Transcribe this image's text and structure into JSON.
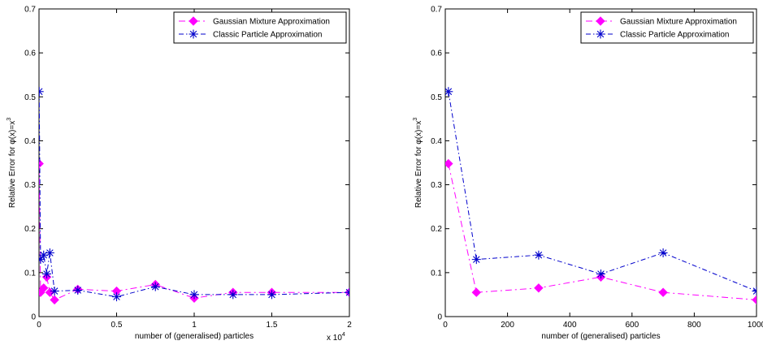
{
  "chart_data": [
    {
      "type": "line",
      "xlabel": "number of (generalised) particles",
      "ylabel": "Relative Error for φ(x)=x",
      "ylabel_exponent": "3",
      "x_exponent_label": "x 10",
      "x_exponent_power": "4",
      "xlim": [
        0,
        20000
      ],
      "ylim": [
        0,
        0.7
      ],
      "xticks": [
        0,
        5000,
        10000,
        15000,
        20000
      ],
      "xtick_labels": [
        "0",
        "0.5",
        "1",
        "1.5",
        "2"
      ],
      "yticks": [
        0,
        0.1,
        0.2,
        0.3,
        0.4,
        0.5,
        0.6,
        0.7
      ],
      "ytick_labels": [
        "0",
        "0.1",
        "0.2",
        "0.3",
        "0.4",
        "0.5",
        "0.6",
        "0.7"
      ],
      "legend_position": "top-right",
      "grid": false,
      "series": [
        {
          "name": "Gaussian Mixture Approximation",
          "color": "#ff00ff",
          "marker": "diamond",
          "dash": "8,4,2,4",
          "x": [
            10,
            100,
            300,
            500,
            700,
            1000,
            2500,
            5000,
            7500,
            10000,
            12500,
            15000,
            20000
          ],
          "y": [
            0.348,
            0.055,
            0.065,
            0.09,
            0.055,
            0.038,
            0.062,
            0.058,
            0.073,
            0.042,
            0.055,
            0.055,
            0.055
          ]
        },
        {
          "name": "Classic Particle Approximation",
          "color": "#0000cc",
          "marker": "asterisk",
          "dash": "6,3,1.5,3",
          "x": [
            10,
            100,
            300,
            500,
            700,
            1000,
            2500,
            5000,
            7500,
            10000,
            12500,
            15000,
            20000
          ],
          "y": [
            0.512,
            0.13,
            0.14,
            0.097,
            0.145,
            0.058,
            0.06,
            0.045,
            0.068,
            0.05,
            0.05,
            0.05,
            0.055
          ]
        }
      ]
    },
    {
      "type": "line",
      "xlabel": "number of (generalised) particles",
      "ylabel": "Relative Error for φ(x)=x",
      "ylabel_exponent": "3",
      "xlim": [
        0,
        1000
      ],
      "ylim": [
        0,
        0.7
      ],
      "xticks": [
        0,
        200,
        400,
        600,
        800,
        1000
      ],
      "xtick_labels": [
        "0",
        "200",
        "400",
        "600",
        "800",
        "1000"
      ],
      "yticks": [
        0,
        0.1,
        0.2,
        0.3,
        0.4,
        0.5,
        0.6,
        0.7
      ],
      "ytick_labels": [
        "0",
        "0.1",
        "0.2",
        "0.3",
        "0.4",
        "0.5",
        "0.6",
        "0.7"
      ],
      "legend_position": "top-right",
      "grid": false,
      "series": [
        {
          "name": "Gaussian Mixture Approximation",
          "color": "#ff00ff",
          "marker": "diamond",
          "dash": "8,4,2,4",
          "x": [
            10,
            100,
            300,
            500,
            700,
            1000
          ],
          "y": [
            0.348,
            0.055,
            0.065,
            0.09,
            0.055,
            0.038
          ]
        },
        {
          "name": "Classic Particle Approximation",
          "color": "#0000cc",
          "marker": "asterisk",
          "dash": "6,3,1.5,3",
          "x": [
            10,
            100,
            300,
            500,
            700,
            1000
          ],
          "y": [
            0.512,
            0.13,
            0.14,
            0.097,
            0.145,
            0.058
          ]
        }
      ]
    }
  ]
}
